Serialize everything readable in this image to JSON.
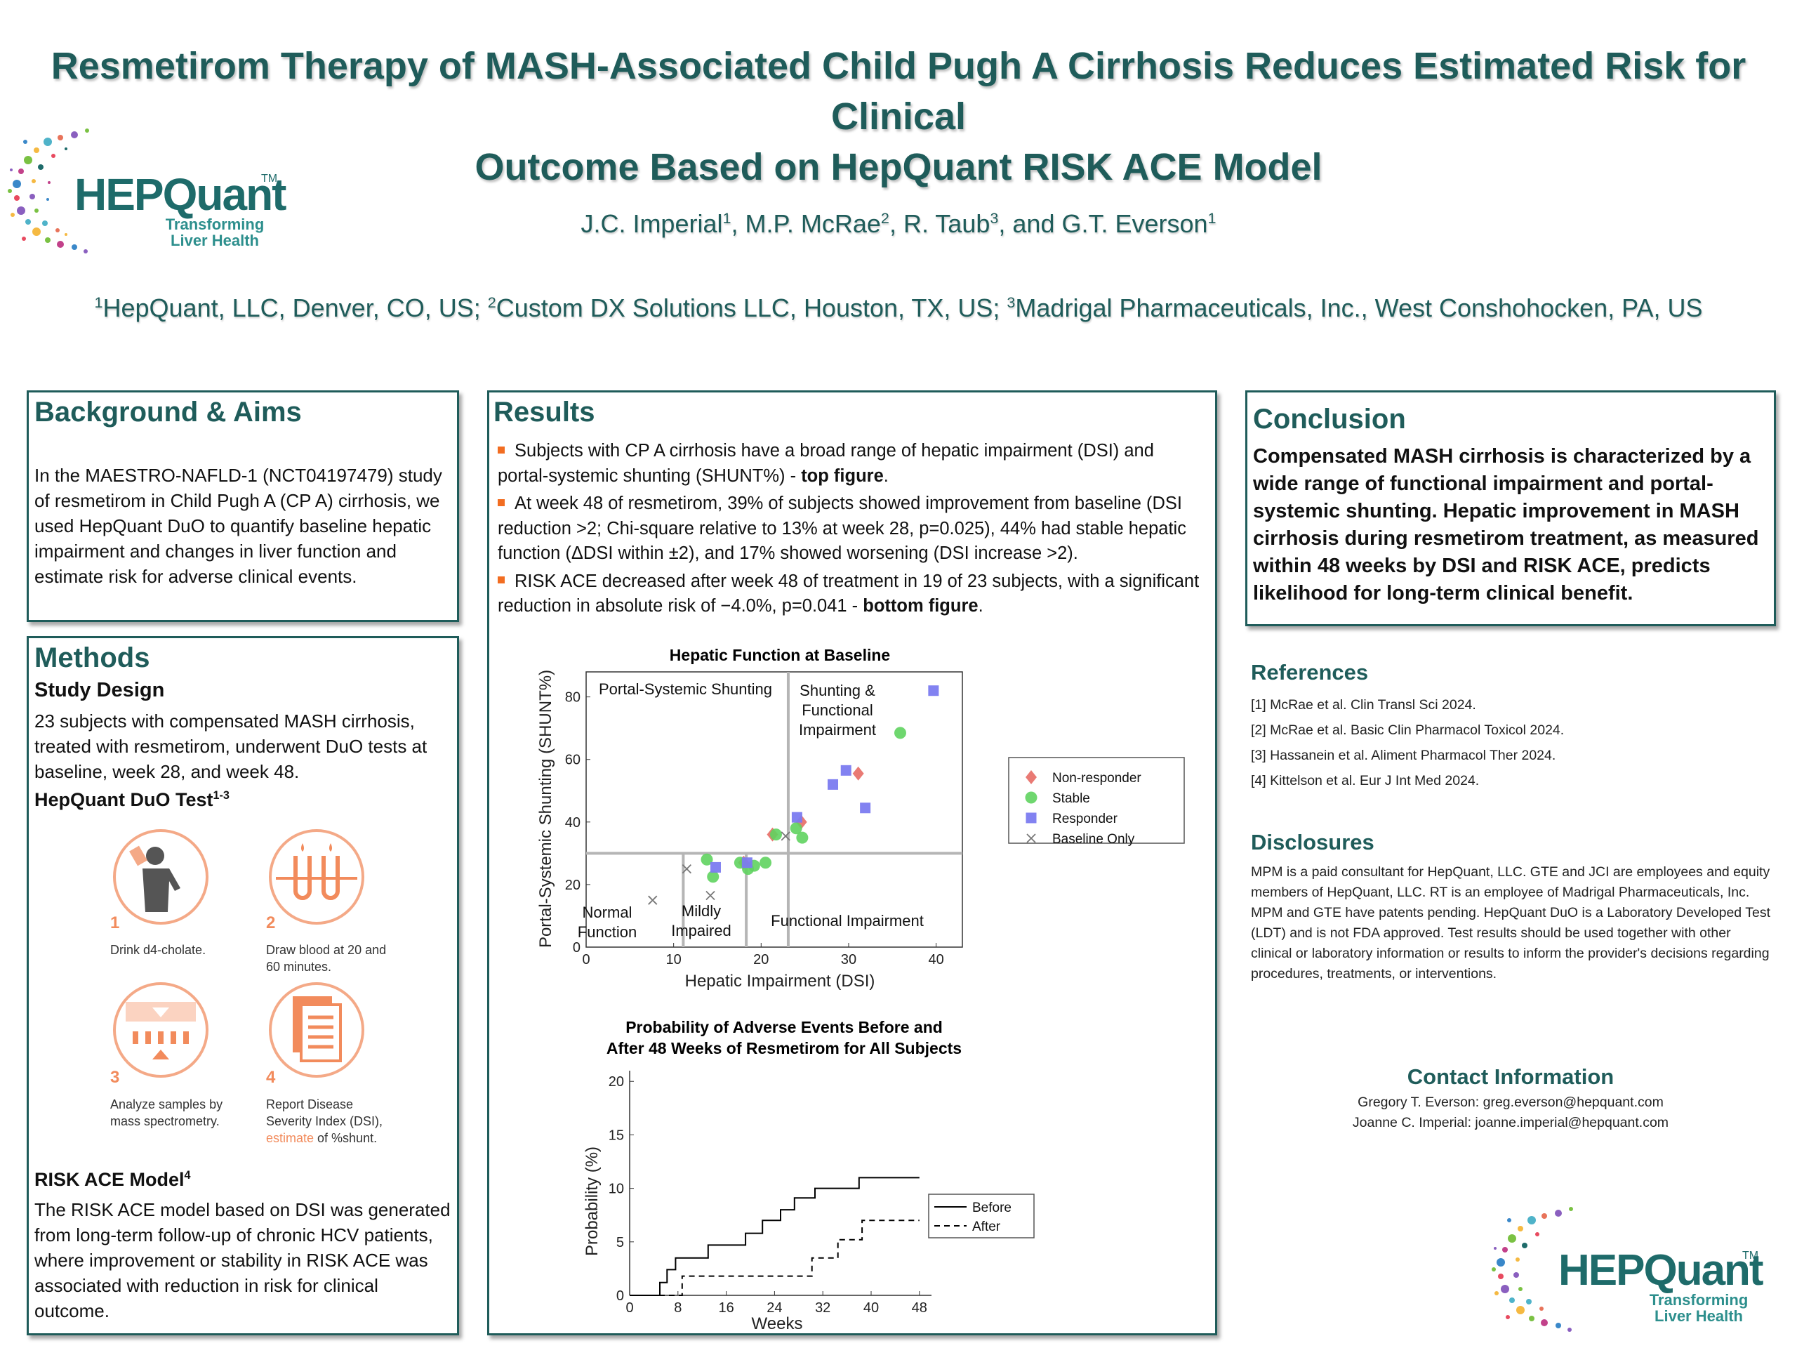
{
  "header": {
    "title_line1": "Resmetirom Therapy of MASH-Associated Child Pugh A Cirrhosis Reduces Estimated Risk for Clinical",
    "title_line2": "Outcome Based on HepQuant RISK ACE Model",
    "authors": [
      {
        "name": "J.C. Imperial",
        "sup": "1"
      },
      {
        "name": "M.P. McRae",
        "sup": "2"
      },
      {
        "name": "R. Taub",
        "sup": "3"
      },
      {
        "name": "G.T. Everson",
        "sup": "1"
      }
    ],
    "author_sep": ", ",
    "author_last_sep": ", and ",
    "affiliations": [
      {
        "sup": "1",
        "text": "HepQuant, LLC, Denver, CO, US; "
      },
      {
        "sup": "2",
        "text": "Custom DX Solutions LLC, Houston, TX, US; "
      },
      {
        "sup": "3",
        "text": "Madrigal Pharmaceuticals, Inc., West Conshohocken, PA, US"
      }
    ]
  },
  "logo": {
    "word": "HEPQuant",
    "tm": "TM",
    "tag1": "Transforming",
    "tag2": "Liver Health"
  },
  "background": {
    "heading": "Background & Aims",
    "text": "In the MAESTRO-NAFLD-1 (NCT04197479) study of resmetirom in Child Pugh A (CP A) cirrhosis, we used HepQuant DuO to quantify baseline hepatic impairment and changes in liver function and estimate risk for adverse clinical events."
  },
  "methods": {
    "heading": "Methods",
    "study_design_heading": "Study Design",
    "study_design_text": "23 subjects with compensated MASH cirrhosis, treated with resmetirom, underwent DuO tests at baseline, week 28, and week 48.",
    "duo_heading": "HepQuant DuO Test",
    "duo_sup": "1-3",
    "steps": [
      {
        "num": "1",
        "caption": "Drink d4-cholate."
      },
      {
        "num": "2",
        "caption": "Draw blood at 20 and 60 minutes."
      },
      {
        "num": "3",
        "caption": "Analyze samples by mass spectrometry."
      },
      {
        "num": "4",
        "caption_a": "Report Disease Severity Index (DSI), ",
        "caption_b": "estimate",
        "caption_c": " of %shunt."
      }
    ],
    "risk_heading": "RISK ACE Model",
    "risk_sup": "4",
    "risk_text": "The RISK ACE model based on DSI was generated from long-term follow-up of chronic HCV patients, where improvement or stability in RISK ACE was associated with reduction in risk for clinical outcome."
  },
  "results": {
    "heading": "Results",
    "b1_text": "Subjects with CP A cirrhosis have a broad range of hepatic impairment (DSI) and portal-systemic shunting (SHUNT%) - ",
    "b1_bold": "top figure",
    "b1_end": ".",
    "b2_text": "At week 48 of resmetirom, 39% of subjects showed improvement from baseline (DSI reduction >2; Chi-square relative to 13% at week 28, p=0.025), 44% had stable hepatic function (ΔDSI within ±2), and 17% showed worsening (DSI increase >2).",
    "b3_text": "RISK ACE decreased after week 48 of treatment in 19 of 23 subjects, with a significant reduction in absolute risk of −4.0%, p=0.041 - ",
    "b3_bold": "bottom figure",
    "b3_end": "."
  },
  "conclusion": {
    "heading": "Conclusion",
    "text": "Compensated MASH cirrhosis is characterized by a wide range of functional impairment and portal-systemic shunting. Hepatic improvement in MASH cirrhosis during resmetirom treatment, as measured within 48 weeks by DSI and RISK ACE, predicts likelihood for long-term clinical benefit."
  },
  "references": {
    "heading": "References",
    "items": [
      "[1] McRae et al. Clin Transl Sci 2024.",
      "[2] McRae et al. Basic Clin Pharmacol Toxicol 2024.",
      "[3] Hassanein et al. Aliment Pharmacol Ther 2024.",
      "[4] Kittelson et al. Eur J Int Med 2024."
    ]
  },
  "disclosures": {
    "heading": "Disclosures",
    "text": "MPM is a paid consultant for HepQuant, LLC. GTE and JCI are employees and equity members of HepQuant, LLC. RT is an employee of Madrigal Pharmaceuticals, Inc. MPM and GTE have patents pending. HepQuant DuO is a Laboratory Developed Test (LDT) and is not FDA approved. Test results should be used together with other clinical or laboratory information or results to inform the provider's decisions regarding procedures, treatments, or interventions."
  },
  "contact": {
    "heading": "Contact Information",
    "line1": "Gregory T. Everson: greg.everson@hepquant.com",
    "line2": "Joanne C. Imperial: joanne.imperial@hepquant.com"
  },
  "colors": {
    "teal": "#1f5c5a",
    "orange": "#f26d21",
    "nonresponder": "#e8736d",
    "stable": "#5fd35f",
    "responder": "#7b7bf0"
  },
  "chart_data": [
    {
      "type": "scatter",
      "title": "Hepatic Function at Baseline",
      "xlabel": "Hepatic Impairment (DSI)",
      "ylabel": "Portal-Systemic Shunting (SHUNT%)",
      "xlim": [
        0,
        43
      ],
      "ylim": [
        0,
        88
      ],
      "xticks": [
        0,
        10,
        20,
        30,
        40
      ],
      "yticks": [
        0,
        20,
        40,
        60,
        80
      ],
      "region_lines": {
        "dsi_vertical_low": [
          11.1,
          18.3
        ],
        "dsi_vertical_high": 23.1,
        "shunt_horizontal": 30
      },
      "region_labels": {
        "portal": "Portal-Systemic Shunting",
        "shunting1": "Shunting &",
        "shunting2": "Functional",
        "shunting3": "Impairment",
        "normal1": "Normal",
        "normal2": "Function",
        "mild1": "Mildly",
        "mild2": "Impaired",
        "functional": "Functional Impairment"
      },
      "legend": [
        "Non-responder",
        "Stable",
        "Responder",
        "Baseline Only"
      ],
      "series": [
        {
          "name": "Non-responder",
          "points": [
            [
              21.3,
              36
            ],
            [
              24.6,
              40
            ],
            [
              31.1,
              55.5
            ],
            [
              18.0,
              27
            ]
          ]
        },
        {
          "name": "Stable",
          "points": [
            [
              13.8,
              28
            ],
            [
              14.5,
              22.5
            ],
            [
              17.6,
              27
            ],
            [
              18.5,
              25
            ],
            [
              19.2,
              26
            ],
            [
              20.5,
              27
            ],
            [
              21.7,
              36
            ],
            [
              24.0,
              38
            ],
            [
              24.7,
              35
            ],
            [
              35.9,
              68.5
            ]
          ]
        },
        {
          "name": "Responder",
          "points": [
            [
              14.8,
              25.5
            ],
            [
              18.4,
              27
            ],
            [
              24.1,
              41.5
            ],
            [
              28.2,
              52
            ],
            [
              29.7,
              56.5
            ],
            [
              31.9,
              44.5
            ],
            [
              39.7,
              82
            ]
          ]
        },
        {
          "name": "Baseline Only",
          "points": [
            [
              7.6,
              15
            ],
            [
              11.5,
              25
            ],
            [
              14.2,
              16.5
            ],
            [
              22.8,
              35.5
            ]
          ]
        }
      ]
    },
    {
      "type": "line",
      "title_line1": "Probability of Adverse Events Before and",
      "title_line2": "After 48 Weeks of Resmetirom for All Subjects",
      "xlabel": "Weeks",
      "ylabel": "Probability (%)",
      "xlim": [
        0,
        50
      ],
      "ylim": [
        0,
        21
      ],
      "xticks": [
        0,
        8,
        16,
        24,
        32,
        40,
        48
      ],
      "yticks": [
        0,
        5,
        10,
        15,
        20
      ],
      "series": [
        {
          "name": "Before",
          "style": "solid",
          "steps": [
            [
              0,
              0
            ],
            [
              5,
              0
            ],
            [
              5,
              1.2
            ],
            [
              6.2,
              1.2
            ],
            [
              6.2,
              2.4
            ],
            [
              7.6,
              2.4
            ],
            [
              7.6,
              3.5
            ],
            [
              13,
              3.5
            ],
            [
              13,
              4.7
            ],
            [
              19.2,
              4.7
            ],
            [
              19.2,
              5.8
            ],
            [
              22,
              5.8
            ],
            [
              22,
              7.0
            ],
            [
              25,
              7.0
            ],
            [
              25,
              8.0
            ],
            [
              27.3,
              8.0
            ],
            [
              27.3,
              9.1
            ],
            [
              30.7,
              9.1
            ],
            [
              30.7,
              10.0
            ],
            [
              38,
              10.0
            ],
            [
              38,
              11.0
            ],
            [
              48,
              11.0
            ]
          ]
        },
        {
          "name": "After",
          "style": "dashed",
          "steps": [
            [
              0,
              0
            ],
            [
              8.7,
              0
            ],
            [
              8.7,
              1.8
            ],
            [
              30.2,
              1.8
            ],
            [
              30.2,
              3.5
            ],
            [
              34.5,
              3.5
            ],
            [
              34.5,
              5.2
            ],
            [
              38.5,
              5.2
            ],
            [
              38.5,
              7.0
            ],
            [
              48,
              7.0
            ]
          ]
        }
      ]
    }
  ]
}
